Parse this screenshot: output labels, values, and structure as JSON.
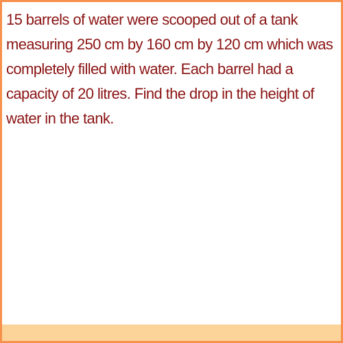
{
  "question": {
    "text": "15 barrels of water were scooped out of a tank measuring 250 cm by 160 cm by 120 cm which was completely filled with water. Each barrel had a capacity of 20 litres. Find the drop in the height of water in the tank."
  },
  "colors": {
    "border": "#f6904a",
    "text": "#8b1414",
    "footer": "#fcd49a",
    "background": "#ffffff"
  }
}
